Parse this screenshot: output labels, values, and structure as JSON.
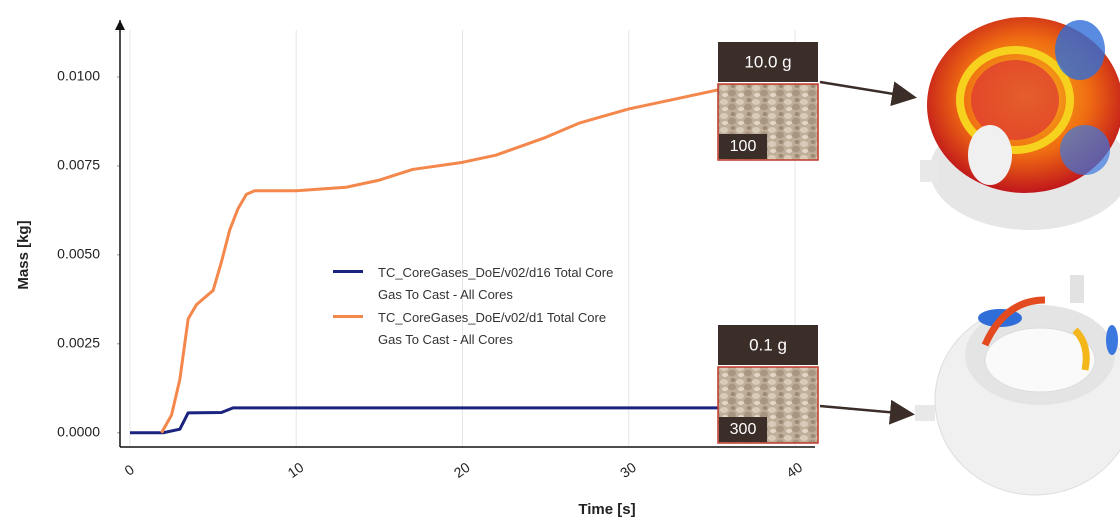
{
  "chart_data": {
    "type": "line",
    "xlabel": "Time [s]",
    "ylabel": "Mass [kg]",
    "xlim": [
      -0.6,
      41.2
    ],
    "ylim": [
      -0.0004,
      0.0116
    ],
    "xticks": [
      0,
      10,
      20,
      30,
      40
    ],
    "yticks": [
      {
        "value": 0,
        "label": "0.0000"
      },
      {
        "value": 0.0025,
        "label": "0.0025"
      },
      {
        "value": 0.005,
        "label": "0.0050"
      },
      {
        "value": 0.0075,
        "label": "0.0075"
      },
      {
        "value": 0.01,
        "label": "0.0100"
      }
    ],
    "grid": true,
    "series": [
      {
        "name": "TC_CoreGases_DoE/v02/d16 Total Core Gas To Cast - All Cores",
        "color": "#1a237e",
        "x": [
          0,
          2,
          3,
          3.5,
          5.5,
          6.2,
          35.5
        ],
        "values": [
          0,
          0,
          0.0001,
          0.00056,
          0.00057,
          0.0007,
          0.0007
        ]
      },
      {
        "name": "TC_CoreGases_DoE/v02/d1 Total Core Gas To Cast - All Cores",
        "color": "#f4874b",
        "x": [
          1.9,
          2.5,
          3,
          3.5,
          4,
          5,
          5.5,
          6,
          6.5,
          7,
          7.5,
          10,
          13,
          15,
          17,
          20,
          22,
          25,
          27,
          30,
          33,
          35,
          36
        ],
        "values": [
          0,
          0.0005,
          0.0015,
          0.0032,
          0.0036,
          0.004,
          0.0048,
          0.0057,
          0.0063,
          0.0067,
          0.0068,
          0.0068,
          0.0069,
          0.0071,
          0.0074,
          0.0076,
          0.0078,
          0.0083,
          0.0087,
          0.0091,
          0.0094,
          0.0096,
          0.0097
        ]
      }
    ],
    "annotations": [
      {
        "mass": "10.0 g",
        "sample": "100"
      },
      {
        "mass": "0.1 g",
        "sample": "300"
      }
    ]
  }
}
